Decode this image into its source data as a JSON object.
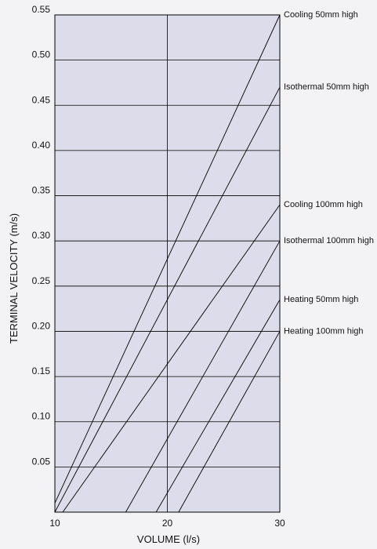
{
  "chart_data": {
    "type": "line",
    "title": "",
    "xlabel": "VOLUME (l/s)",
    "ylabel": "TERMINAL VELOCITY (m/s)",
    "xlim": [
      10,
      30
    ],
    "ylim": [
      0,
      0.55
    ],
    "x_ticks": [
      10,
      20,
      30
    ],
    "x_tick_labels": [
      "10",
      "20",
      "30"
    ],
    "y_ticks": [
      0.05,
      0.1,
      0.15,
      0.2,
      0.25,
      0.3,
      0.35,
      0.4,
      0.45,
      0.5,
      0.55
    ],
    "y_tick_labels": [
      "0.05",
      "0.10",
      "0.15",
      "0.20",
      "0.25",
      "0.30",
      "0.35",
      "0.40",
      "0.45",
      "0.50",
      "0.55"
    ],
    "grid": {
      "horizontal": true,
      "vertical_at": [
        20
      ]
    },
    "legend": "series labels at right edge",
    "colors": {
      "plot_background": "#dcdcea",
      "line": "#000000",
      "page_background": "#f3f3f5"
    },
    "series": [
      {
        "name": "Cooling 50mm high",
        "points": [
          [
            10,
            0.01
          ],
          [
            30,
            0.55
          ]
        ]
      },
      {
        "name": "Isothermal 50mm high",
        "points": [
          [
            10,
            0.0
          ],
          [
            30,
            0.47
          ]
        ]
      },
      {
        "name": "Cooling 100mm high",
        "points": [
          [
            10.7,
            0.0
          ],
          [
            30,
            0.34
          ]
        ]
      },
      {
        "name": "Isothermal 100mm high",
        "points": [
          [
            16.3,
            0.0
          ],
          [
            30,
            0.3
          ]
        ]
      },
      {
        "name": "Heating 50mm high",
        "points": [
          [
            19.0,
            0.0
          ],
          [
            30,
            0.235
          ]
        ]
      },
      {
        "name": "Heating 100mm high",
        "points": [
          [
            21.0,
            0.0
          ],
          [
            30,
            0.2
          ]
        ]
      }
    ],
    "series_label_values": [
      0.55,
      0.47,
      0.34,
      0.3,
      0.235,
      0.2
    ]
  }
}
